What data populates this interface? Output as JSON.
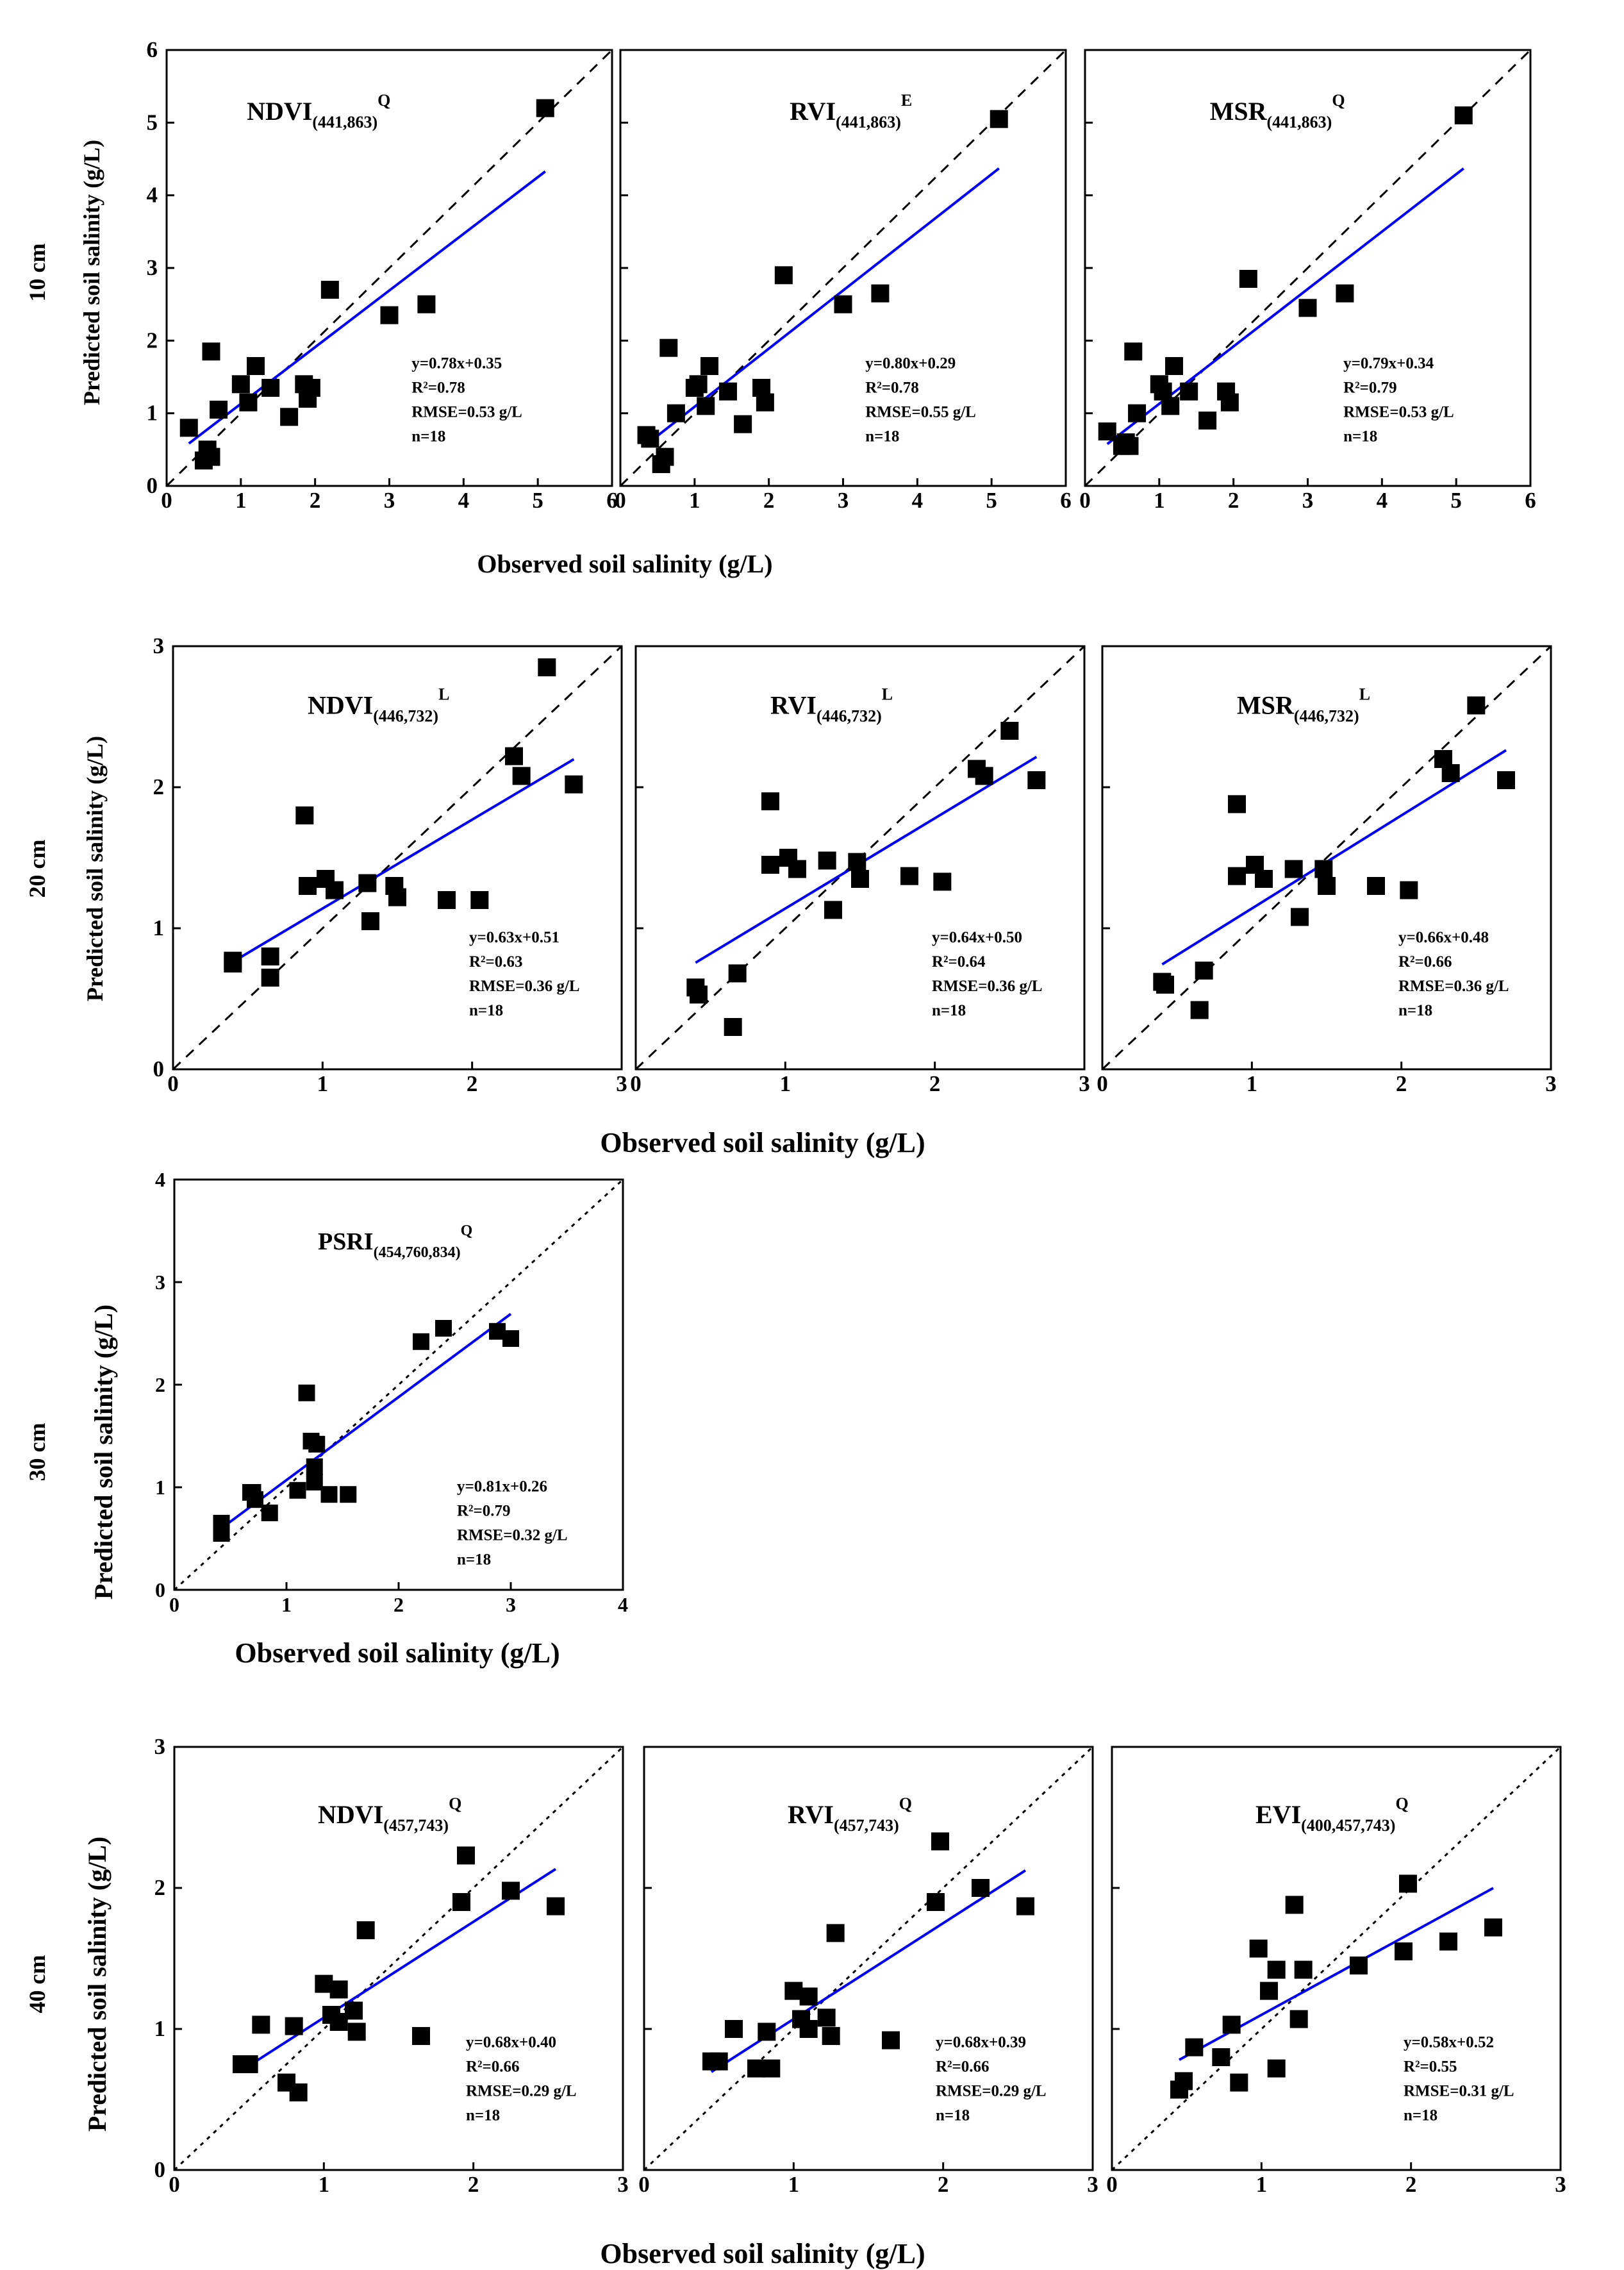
{
  "figure": {
    "x_label": "Observed soil salinity (g/L)",
    "y_label": "Predicted soil salinity (g/L)",
    "regression_color": "#0000ff",
    "marker_color": "#000000"
  },
  "chart_data": [
    {
      "type": "scatter",
      "depth": "10 cm",
      "title_main": "NDVI",
      "title_sub": "(441,863)",
      "title_sup": "Q",
      "xlim": [
        0,
        6
      ],
      "ylim": [
        0,
        6
      ],
      "xticks": [
        "0",
        "1",
        "2",
        "3",
        "4",
        "5",
        "6"
      ],
      "yticks": [
        "0",
        "1",
        "2",
        "3",
        "4",
        "5",
        "6"
      ],
      "diag_style": "dashed",
      "fit": {
        "slope": 0.78,
        "intercept": 0.35
      },
      "stats": [
        "y=0.78x+0.35",
        "R²=0.78",
        "RMSE=0.53 g/L",
        "n=18"
      ],
      "x": [
        0.3,
        0.5,
        0.55,
        0.6,
        0.7,
        1.0,
        1.1,
        1.2,
        1.4,
        1.65,
        1.85,
        1.9,
        1.95,
        2.2,
        3.0,
        3.5,
        5.1,
        0.6
      ],
      "y": [
        0.8,
        0.35,
        0.5,
        1.85,
        1.05,
        1.4,
        1.15,
        1.65,
        1.35,
        0.95,
        1.4,
        1.2,
        1.35,
        2.7,
        2.35,
        2.5,
        5.2,
        0.4
      ]
    },
    {
      "type": "scatter",
      "depth": "10 cm",
      "title_main": "RVI",
      "title_sub": "(441,863)",
      "title_sup": "E",
      "xlim": [
        0,
        6
      ],
      "ylim": [
        0,
        6
      ],
      "xticks": [
        "0",
        "1",
        "2",
        "3",
        "4",
        "5",
        "6"
      ],
      "yticks": [],
      "diag_style": "dashed",
      "fit": {
        "slope": 0.8,
        "intercept": 0.29
      },
      "stats": [
        "y=0.80x+0.29",
        "R²=0.78",
        "RMSE=0.55 g/L",
        "n=18"
      ],
      "x": [
        0.35,
        0.55,
        0.6,
        0.65,
        0.75,
        1.0,
        1.15,
        1.2,
        1.45,
        1.65,
        1.9,
        1.95,
        2.2,
        3.0,
        3.5,
        5.1,
        0.4,
        1.05
      ],
      "y": [
        0.7,
        0.3,
        0.4,
        1.9,
        1.0,
        1.35,
        1.1,
        1.65,
        1.3,
        0.85,
        1.35,
        1.15,
        2.9,
        2.5,
        2.65,
        5.05,
        0.65,
        1.4
      ]
    },
    {
      "type": "scatter",
      "depth": "10 cm",
      "title_main": "MSR",
      "title_sub": "(441,863)",
      "title_sup": "Q",
      "xlim": [
        0,
        6
      ],
      "ylim": [
        0,
        6
      ],
      "xticks": [
        "0",
        "1",
        "2",
        "3",
        "4",
        "5",
        "6"
      ],
      "yticks": [],
      "diag_style": "dashed",
      "fit": {
        "slope": 0.79,
        "intercept": 0.34
      },
      "stats": [
        "y=0.79x+0.34",
        "R²=0.79",
        "RMSE=0.53 g/L",
        "n=18"
      ],
      "x": [
        0.3,
        0.5,
        0.6,
        0.65,
        0.7,
        1.0,
        1.05,
        1.15,
        1.4,
        1.65,
        1.9,
        1.95,
        2.2,
        3.0,
        3.5,
        5.1,
        1.2,
        0.55
      ],
      "y": [
        0.75,
        0.55,
        0.55,
        1.85,
        1.0,
        1.4,
        1.3,
        1.1,
        1.3,
        0.9,
        1.3,
        1.15,
        2.85,
        2.45,
        2.65,
        5.1,
        1.65,
        0.6
      ]
    },
    {
      "type": "scatter",
      "depth": "20 cm",
      "title_main": "NDVI",
      "title_sub": "(446,732)",
      "title_sup": "L",
      "xlim": [
        0,
        3
      ],
      "ylim": [
        0,
        3
      ],
      "xticks": [
        "0",
        "1",
        "2",
        "3"
      ],
      "yticks": [
        "0",
        "1",
        "2",
        "3"
      ],
      "diag_style": "dashed",
      "fit": {
        "slope": 0.63,
        "intercept": 0.51
      },
      "stats": [
        "y=0.63x+0.51",
        "R²=0.63",
        "RMSE=0.36 g/L",
        "n=18"
      ],
      "x": [
        0.4,
        0.65,
        0.65,
        0.88,
        0.9,
        1.02,
        1.08,
        1.3,
        1.32,
        1.48,
        1.5,
        1.83,
        2.05,
        2.28,
        2.33,
        2.5,
        2.68,
        0.4
      ],
      "y": [
        0.75,
        0.8,
        0.65,
        1.8,
        1.3,
        1.35,
        1.27,
        1.32,
        1.05,
        1.3,
        1.22,
        1.2,
        1.2,
        2.22,
        2.08,
        2.85,
        2.02,
        0.77
      ]
    },
    {
      "type": "scatter",
      "depth": "20 cm",
      "title_main": "RVI",
      "title_sub": "(446,732)",
      "title_sup": "L",
      "xlim": [
        0,
        3
      ],
      "ylim": [
        0,
        3
      ],
      "xticks": [
        "0",
        "1",
        "2",
        "3"
      ],
      "yticks": [],
      "diag_style": "dashed",
      "fit": {
        "slope": 0.64,
        "intercept": 0.5
      },
      "stats": [
        "y=0.64x+0.50",
        "R²=0.64",
        "RMSE=0.36 g/L",
        "n=18"
      ],
      "x": [
        0.4,
        0.42,
        0.65,
        0.68,
        0.9,
        0.9,
        1.02,
        1.08,
        1.28,
        1.32,
        1.48,
        1.5,
        1.83,
        2.05,
        2.28,
        2.33,
        2.5,
        2.68
      ],
      "y": [
        0.58,
        0.53,
        0.3,
        0.68,
        1.9,
        1.45,
        1.5,
        1.42,
        1.48,
        1.13,
        1.47,
        1.35,
        1.37,
        1.33,
        2.13,
        2.08,
        2.4,
        2.05
      ]
    },
    {
      "type": "scatter",
      "depth": "20 cm",
      "title_main": "MSR",
      "title_sub": "(446,732)",
      "title_sup": "L",
      "xlim": [
        0,
        3
      ],
      "ylim": [
        0,
        3
      ],
      "xticks": [
        "0",
        "1",
        "2",
        "3"
      ],
      "yticks": [],
      "diag_style": "dashed",
      "fit": {
        "slope": 0.66,
        "intercept": 0.48
      },
      "stats": [
        "y=0.66x+0.48",
        "R²=0.66",
        "RMSE=0.36 g/L",
        "n=18"
      ],
      "x": [
        0.4,
        0.42,
        0.65,
        0.68,
        0.9,
        0.9,
        1.02,
        1.08,
        1.28,
        1.32,
        1.48,
        1.5,
        1.83,
        2.05,
        2.28,
        2.33,
        2.5,
        2.7
      ],
      "y": [
        0.62,
        0.6,
        0.42,
        0.7,
        1.88,
        1.37,
        1.45,
        1.35,
        1.42,
        1.08,
        1.42,
        1.3,
        1.3,
        1.27,
        2.2,
        2.1,
        2.58,
        2.05
      ]
    },
    {
      "type": "scatter",
      "depth": "30 cm",
      "title_main": "PSRI",
      "title_sub": "(454,760,834)",
      "title_sup": "Q",
      "xlim": [
        0,
        4
      ],
      "ylim": [
        0,
        4
      ],
      "xticks": [
        "0",
        "1",
        "2",
        "3",
        "4"
      ],
      "yticks": [
        "0",
        "1",
        "2",
        "3",
        "4"
      ],
      "diag_style": "dotted",
      "fit": {
        "slope": 0.81,
        "intercept": 0.26
      },
      "stats": [
        "y=0.81x+0.26",
        "R²=0.79",
        "RMSE=0.32 g/L",
        "n=18"
      ],
      "x": [
        0.42,
        0.42,
        0.68,
        0.7,
        0.72,
        0.85,
        1.1,
        1.18,
        1.22,
        1.25,
        1.25,
        1.27,
        1.38,
        1.55,
        2.2,
        2.4,
        2.88,
        3.0
      ],
      "y": [
        0.55,
        0.65,
        0.95,
        0.95,
        0.88,
        0.75,
        0.97,
        1.92,
        1.45,
        1.05,
        1.2,
        1.42,
        0.93,
        0.93,
        2.42,
        2.55,
        2.52,
        2.45
      ]
    },
    {
      "type": "scatter",
      "depth": "40 cm",
      "title_main": "NDVI",
      "title_sub": "(457,743)",
      "title_sup": "Q",
      "xlim": [
        0,
        3
      ],
      "ylim": [
        0,
        3
      ],
      "xticks": [
        "0",
        "1",
        "2",
        "3"
      ],
      "yticks": [
        "0",
        "1",
        "2",
        "3"
      ],
      "diag_style": "dotted",
      "fit": {
        "slope": 0.68,
        "intercept": 0.4
      },
      "stats": [
        "y=0.68x+0.40",
        "R²=0.66",
        "RMSE=0.29 g/L",
        "n=18"
      ],
      "x": [
        0.45,
        0.5,
        0.58,
        0.75,
        0.8,
        0.83,
        1.0,
        1.05,
        1.1,
        1.1,
        1.2,
        1.22,
        1.28,
        1.65,
        1.92,
        1.95,
        2.25,
        2.55
      ],
      "y": [
        0.75,
        0.75,
        1.03,
        0.62,
        1.02,
        0.55,
        1.32,
        1.1,
        1.28,
        1.05,
        1.13,
        0.98,
        1.7,
        0.95,
        1.9,
        2.23,
        1.98,
        1.87
      ]
    },
    {
      "type": "scatter",
      "depth": "40 cm",
      "title_main": "RVI",
      "title_sub": "(457,743)",
      "title_sup": "Q",
      "xlim": [
        0,
        3
      ],
      "ylim": [
        0,
        3
      ],
      "xticks": [
        "0",
        "1",
        "2",
        "3"
      ],
      "yticks": [],
      "diag_style": "dotted",
      "fit": {
        "slope": 0.68,
        "intercept": 0.39
      },
      "stats": [
        "y=0.68x+0.39",
        "R²=0.66",
        "RMSE=0.29 g/L",
        "n=18"
      ],
      "x": [
        0.45,
        0.5,
        0.6,
        0.75,
        0.82,
        0.85,
        1.0,
        1.05,
        1.1,
        1.1,
        1.22,
        1.25,
        1.28,
        1.65,
        1.95,
        1.98,
        2.25,
        2.55
      ],
      "y": [
        0.77,
        0.77,
        1.0,
        0.72,
        0.98,
        0.72,
        1.27,
        1.07,
        1.23,
        1.0,
        1.08,
        0.95,
        1.68,
        0.92,
        1.9,
        2.33,
        2.0,
        1.87
      ]
    },
    {
      "type": "scatter",
      "depth": "40 cm",
      "title_main": "EVI",
      "title_sub": "(400,457,743)",
      "title_sup": "Q",
      "xlim": [
        0,
        3
      ],
      "ylim": [
        0,
        3
      ],
      "xticks": [
        "0",
        "1",
        "2",
        "3"
      ],
      "yticks": [],
      "diag_style": "dotted",
      "fit": {
        "slope": 0.58,
        "intercept": 0.52
      },
      "stats": [
        "y=0.58x+0.52",
        "R²=0.55",
        "RMSE=0.31 g/L",
        "n=18"
      ],
      "x": [
        0.45,
        0.48,
        0.55,
        0.73,
        0.8,
        0.85,
        0.98,
        1.05,
        1.1,
        1.1,
        1.22,
        1.25,
        1.28,
        1.65,
        1.95,
        1.98,
        2.25,
        2.55
      ],
      "y": [
        0.57,
        0.63,
        0.87,
        0.8,
        1.03,
        0.62,
        1.57,
        1.27,
        1.42,
        0.72,
        1.88,
        1.07,
        1.42,
        1.45,
        1.55,
        2.03,
        1.62,
        1.72
      ]
    }
  ]
}
